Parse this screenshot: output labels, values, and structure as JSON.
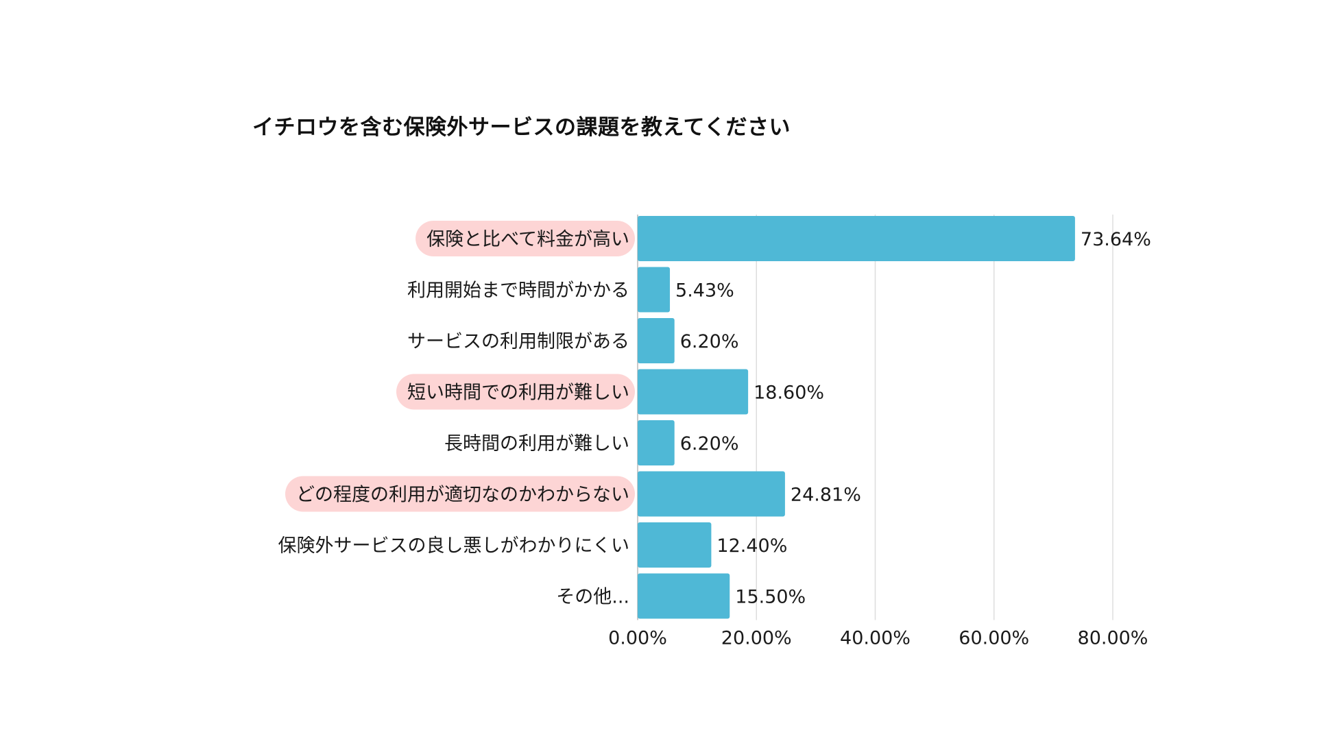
{
  "chart_data": {
    "type": "bar",
    "orientation": "horizontal",
    "title": "イチロウを含む保険外サービスの課題を教えてください",
    "categories": [
      "保険と比べて料金が高い",
      "利用開始まで時間がかかる",
      "サービスの利用制限がある",
      "短い時間での利用が難しい",
      "長時間の利用が難しい",
      "どの程度の利用が適切なのかわからない",
      "保険外サービスの良し悪しがわかりにくい",
      "その他..."
    ],
    "values": [
      73.64,
      5.43,
      6.2,
      18.6,
      6.2,
      24.81,
      12.4,
      15.5
    ],
    "value_labels": [
      "73.64%",
      "5.43%",
      "6.20%",
      "18.60%",
      "6.20%",
      "24.81%",
      "12.40%",
      "15.50%"
    ],
    "highlighted": [
      true,
      false,
      false,
      true,
      false,
      true,
      false,
      false
    ],
    "xlim": [
      0,
      80
    ],
    "xticks": [
      0,
      20,
      40,
      60,
      80
    ],
    "xtick_labels": [
      "0.00%",
      "20.00%",
      "40.00%",
      "60.00%",
      "80.00%"
    ],
    "grid": true,
    "bar_color": "#4fb8d6",
    "highlight_color": "#fdd5d5",
    "grid_color": "#dddddd"
  }
}
